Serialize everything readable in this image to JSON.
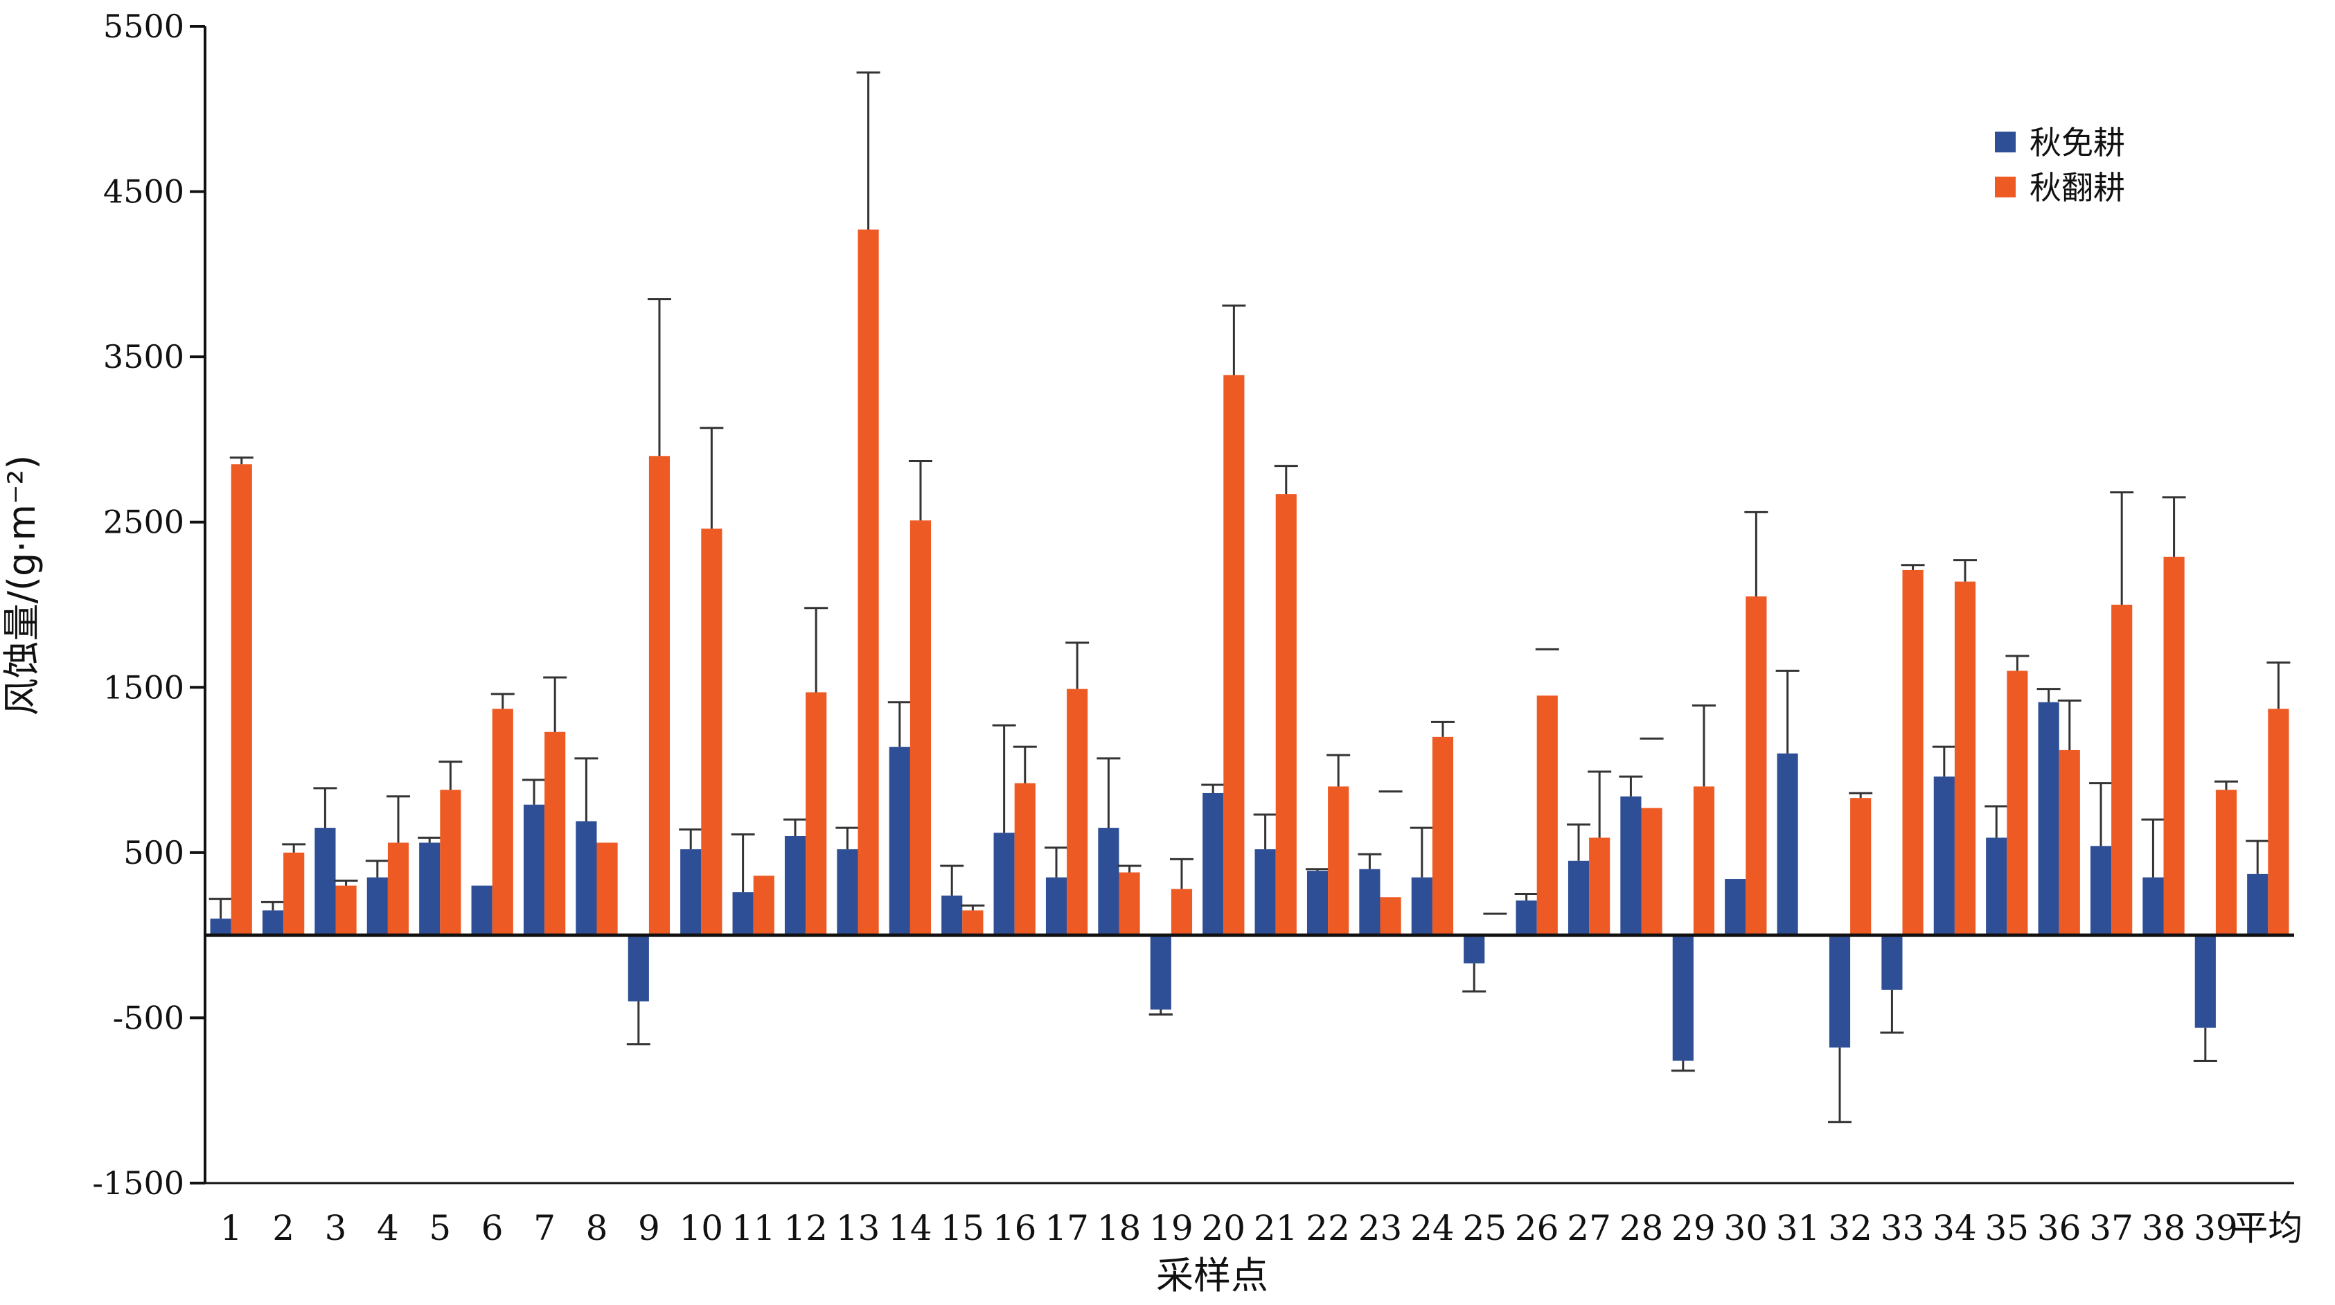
{
  "chart_data": {
    "type": "bar",
    "ylabel": "风蚀量/(g·m⁻²)",
    "xlabel": "采样点",
    "ylim": [
      -1500,
      5500
    ],
    "yticks": [
      -1500,
      -500,
      500,
      1500,
      2500,
      3500,
      4500,
      5500
    ],
    "legend_position": "top-right",
    "categories": [
      "1",
      "2",
      "3",
      "4",
      "5",
      "6",
      "7",
      "8",
      "9",
      "10",
      "11",
      "12",
      "13",
      "14",
      "15",
      "16",
      "17",
      "18",
      "19",
      "20",
      "21",
      "22",
      "23",
      "24",
      "25",
      "26",
      "27",
      "28",
      "29",
      "30",
      "31",
      "32",
      "33",
      "34",
      "35",
      "36",
      "37",
      "38",
      "39",
      "平均"
    ],
    "series": [
      {
        "name": "秋免耕",
        "color": "#2e4e96",
        "values": [
          100,
          150,
          650,
          350,
          560,
          300,
          790,
          690,
          -400,
          520,
          260,
          600,
          520,
          1140,
          240,
          620,
          350,
          650,
          -450,
          860,
          520,
          390,
          400,
          350,
          -170,
          210,
          450,
          840,
          -760,
          340,
          1100,
          -680,
          -330,
          960,
          590,
          1410,
          540,
          350,
          -560,
          370
        ],
        "error": [
          120,
          50,
          240,
          100,
          30,
          0,
          150,
          380,
          260,
          120,
          350,
          100,
          130,
          270,
          180,
          650,
          180,
          420,
          30,
          50,
          210,
          10,
          90,
          300,
          170,
          40,
          220,
          120,
          60,
          0,
          500,
          450,
          260,
          180,
          190,
          80,
          380,
          350,
          200,
          200
        ]
      },
      {
        "name": "秋翻耕",
        "color": "#ee5a24",
        "values": [
          2850,
          500,
          300,
          560,
          880,
          1370,
          1230,
          560,
          2900,
          2460,
          360,
          1470,
          4270,
          2510,
          150,
          920,
          1490,
          380,
          280,
          3390,
          2670,
          900,
          230,
          1200,
          null,
          1450,
          590,
          770,
          900,
          2050,
          null,
          830,
          2210,
          2140,
          1600,
          1120,
          2000,
          2290,
          880,
          1370
        ],
        "error": [
          40,
          50,
          30,
          280,
          170,
          90,
          330,
          0,
          950,
          610,
          0,
          510,
          950,
          360,
          30,
          220,
          280,
          40,
          180,
          420,
          170,
          190,
          0,
          90,
          null,
          0,
          400,
          0,
          490,
          510,
          null,
          30,
          30,
          130,
          90,
          300,
          680,
          360,
          50,
          280
        ]
      }
    ],
    "floating_error_markers": [
      {
        "category": "19",
        "series": "秋免耕",
        "value": -480
      },
      {
        "category": "23",
        "series": "秋翻耕",
        "value": 870
      },
      {
        "category": "25",
        "series": "秋翻耕",
        "value": 130
      },
      {
        "category": "26",
        "series": "秋翻耕",
        "value": 1730
      },
      {
        "category": "28",
        "series": "秋翻耕",
        "value": 1190
      }
    ]
  }
}
